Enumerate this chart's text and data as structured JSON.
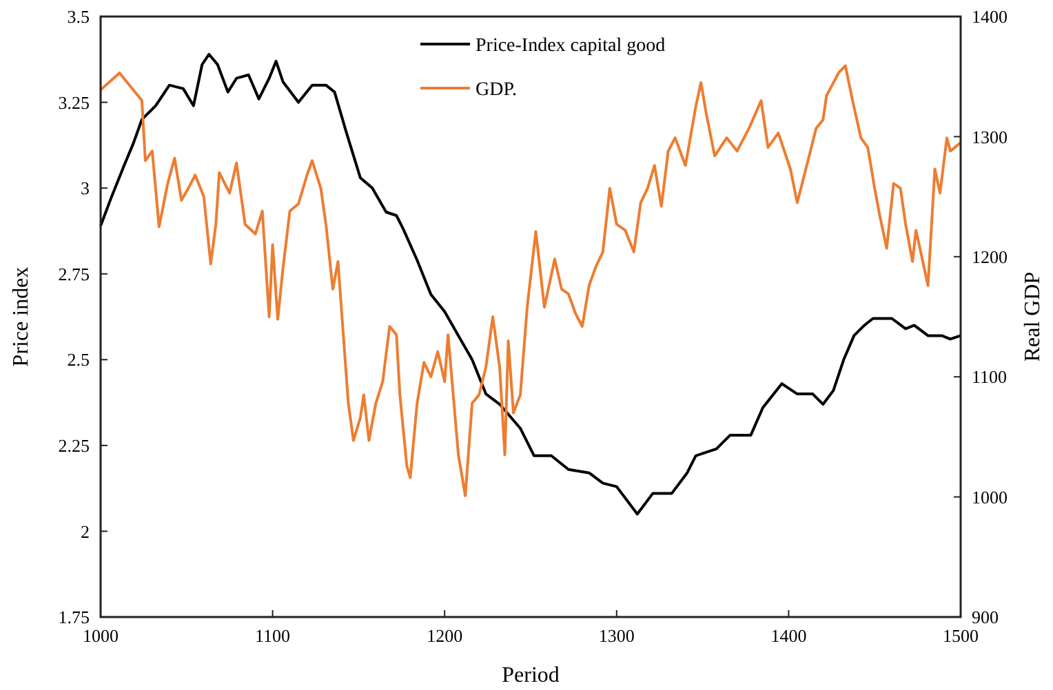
{
  "chart_data": {
    "type": "line",
    "xlabel": "Period",
    "ylabel": "Price index",
    "y2label": "Real GDP",
    "xlim": [
      1000,
      1500
    ],
    "xticks": [
      1000,
      1100,
      1200,
      1300,
      1400,
      1500
    ],
    "ylim": [
      1.75,
      3.5
    ],
    "yticks": [
      1.75,
      2,
      2.25,
      2.5,
      2.75,
      3,
      3.25,
      3.5
    ],
    "y2lim": [
      900,
      1400
    ],
    "y2ticks": [
      900,
      1000,
      1100,
      1200,
      1300,
      1400
    ],
    "legend": "top",
    "grid": false,
    "marker": "none",
    "line_style": "solid",
    "series": [
      {
        "name": "Price-Index capital good",
        "color": "#000000",
        "x": [
          1000,
          1006,
          1014,
          1019,
          1024,
          1032,
          1040,
          1048,
          1054,
          1059,
          1063,
          1068,
          1074,
          1079,
          1086,
          1092,
          1098,
          1102,
          1106,
          1115,
          1123,
          1131,
          1136,
          1143,
          1151,
          1158,
          1166,
          1172,
          1176,
          1184,
          1192,
          1200,
          1208,
          1216,
          1224,
          1232,
          1244,
          1252,
          1262,
          1272,
          1284,
          1292,
          1300,
          1312,
          1321,
          1332,
          1341,
          1346,
          1358,
          1366,
          1378,
          1385,
          1396,
          1405,
          1414,
          1420,
          1426,
          1432,
          1438,
          1444,
          1449,
          1460,
          1468,
          1473,
          1481,
          1489,
          1494,
          1500
        ],
        "values": [
          2.89,
          2.97,
          3.07,
          3.13,
          3.2,
          3.24,
          3.3,
          3.29,
          3.24,
          3.36,
          3.39,
          3.36,
          3.28,
          3.32,
          3.33,
          3.26,
          3.32,
          3.37,
          3.31,
          3.25,
          3.3,
          3.3,
          3.28,
          3.16,
          3.03,
          3.0,
          2.93,
          2.92,
          2.88,
          2.79,
          2.69,
          2.64,
          2.57,
          2.5,
          2.4,
          2.37,
          2.3,
          2.22,
          2.22,
          2.18,
          2.17,
          2.14,
          2.13,
          2.05,
          2.11,
          2.11,
          2.17,
          2.22,
          2.24,
          2.28,
          2.28,
          2.36,
          2.43,
          2.4,
          2.4,
          2.37,
          2.41,
          2.5,
          2.57,
          2.6,
          2.62,
          2.62,
          2.59,
          2.6,
          2.57,
          2.57,
          2.56,
          2.57
        ]
      },
      {
        "name": "GDP.",
        "color": "#ed7d31",
        "axis": "y2",
        "x": [
          1000,
          1011,
          1024,
          1026,
          1030,
          1034,
          1039,
          1043,
          1047,
          1051,
          1055,
          1060,
          1064,
          1067,
          1069,
          1075,
          1079,
          1084,
          1090,
          1094,
          1098,
          1100,
          1103,
          1106,
          1110,
          1115,
          1120,
          1123,
          1128,
          1131,
          1135,
          1138,
          1144,
          1147,
          1151,
          1153,
          1156,
          1160,
          1164,
          1168,
          1172,
          1174,
          1178,
          1180,
          1184,
          1188,
          1192,
          1196,
          1200,
          1202,
          1208,
          1212,
          1216,
          1220,
          1224,
          1228,
          1232,
          1235,
          1237,
          1240,
          1244,
          1248,
          1253,
          1258,
          1264,
          1268,
          1272,
          1276,
          1280,
          1284,
          1288,
          1292,
          1296,
          1300,
          1305,
          1310,
          1314,
          1318,
          1322,
          1326,
          1330,
          1334,
          1340,
          1346,
          1349,
          1352,
          1357,
          1364,
          1370,
          1377,
          1384,
          1388,
          1394,
          1401,
          1405,
          1410,
          1416,
          1420,
          1422,
          1429,
          1433,
          1437,
          1442,
          1446,
          1450,
          1453,
          1457,
          1461,
          1465,
          1468,
          1472,
          1474,
          1478,
          1481,
          1485,
          1488,
          1492,
          1494,
          1500
        ],
        "values": [
          1339,
          1353,
          1330,
          1280,
          1288,
          1225,
          1261,
          1282,
          1247,
          1257,
          1268,
          1250,
          1194,
          1227,
          1270,
          1253,
          1278,
          1227,
          1219,
          1238,
          1150,
          1210,
          1148,
          1190,
          1238,
          1244,
          1268,
          1280,
          1257,
          1227,
          1173,
          1196,
          1078,
          1047,
          1066,
          1085,
          1047,
          1078,
          1096,
          1142,
          1135,
          1085,
          1026,
          1016,
          1078,
          1112,
          1100,
          1121,
          1096,
          1135,
          1035,
          1001,
          1078,
          1085,
          1108,
          1150,
          1108,
          1035,
          1130,
          1070,
          1085,
          1158,
          1221,
          1158,
          1198,
          1173,
          1169,
          1153,
          1142,
          1176,
          1192,
          1204,
          1257,
          1227,
          1222,
          1204,
          1245,
          1257,
          1276,
          1242,
          1288,
          1299,
          1276,
          1325,
          1345,
          1320,
          1284,
          1299,
          1288,
          1307,
          1330,
          1291,
          1303,
          1273,
          1245,
          1273,
          1307,
          1314,
          1334,
          1353,
          1359,
          1331,
          1299,
          1291,
          1257,
          1234,
          1207,
          1261,
          1257,
          1227,
          1196,
          1222,
          1196,
          1176,
          1273,
          1253,
          1299,
          1288,
          1295
        ]
      }
    ]
  }
}
